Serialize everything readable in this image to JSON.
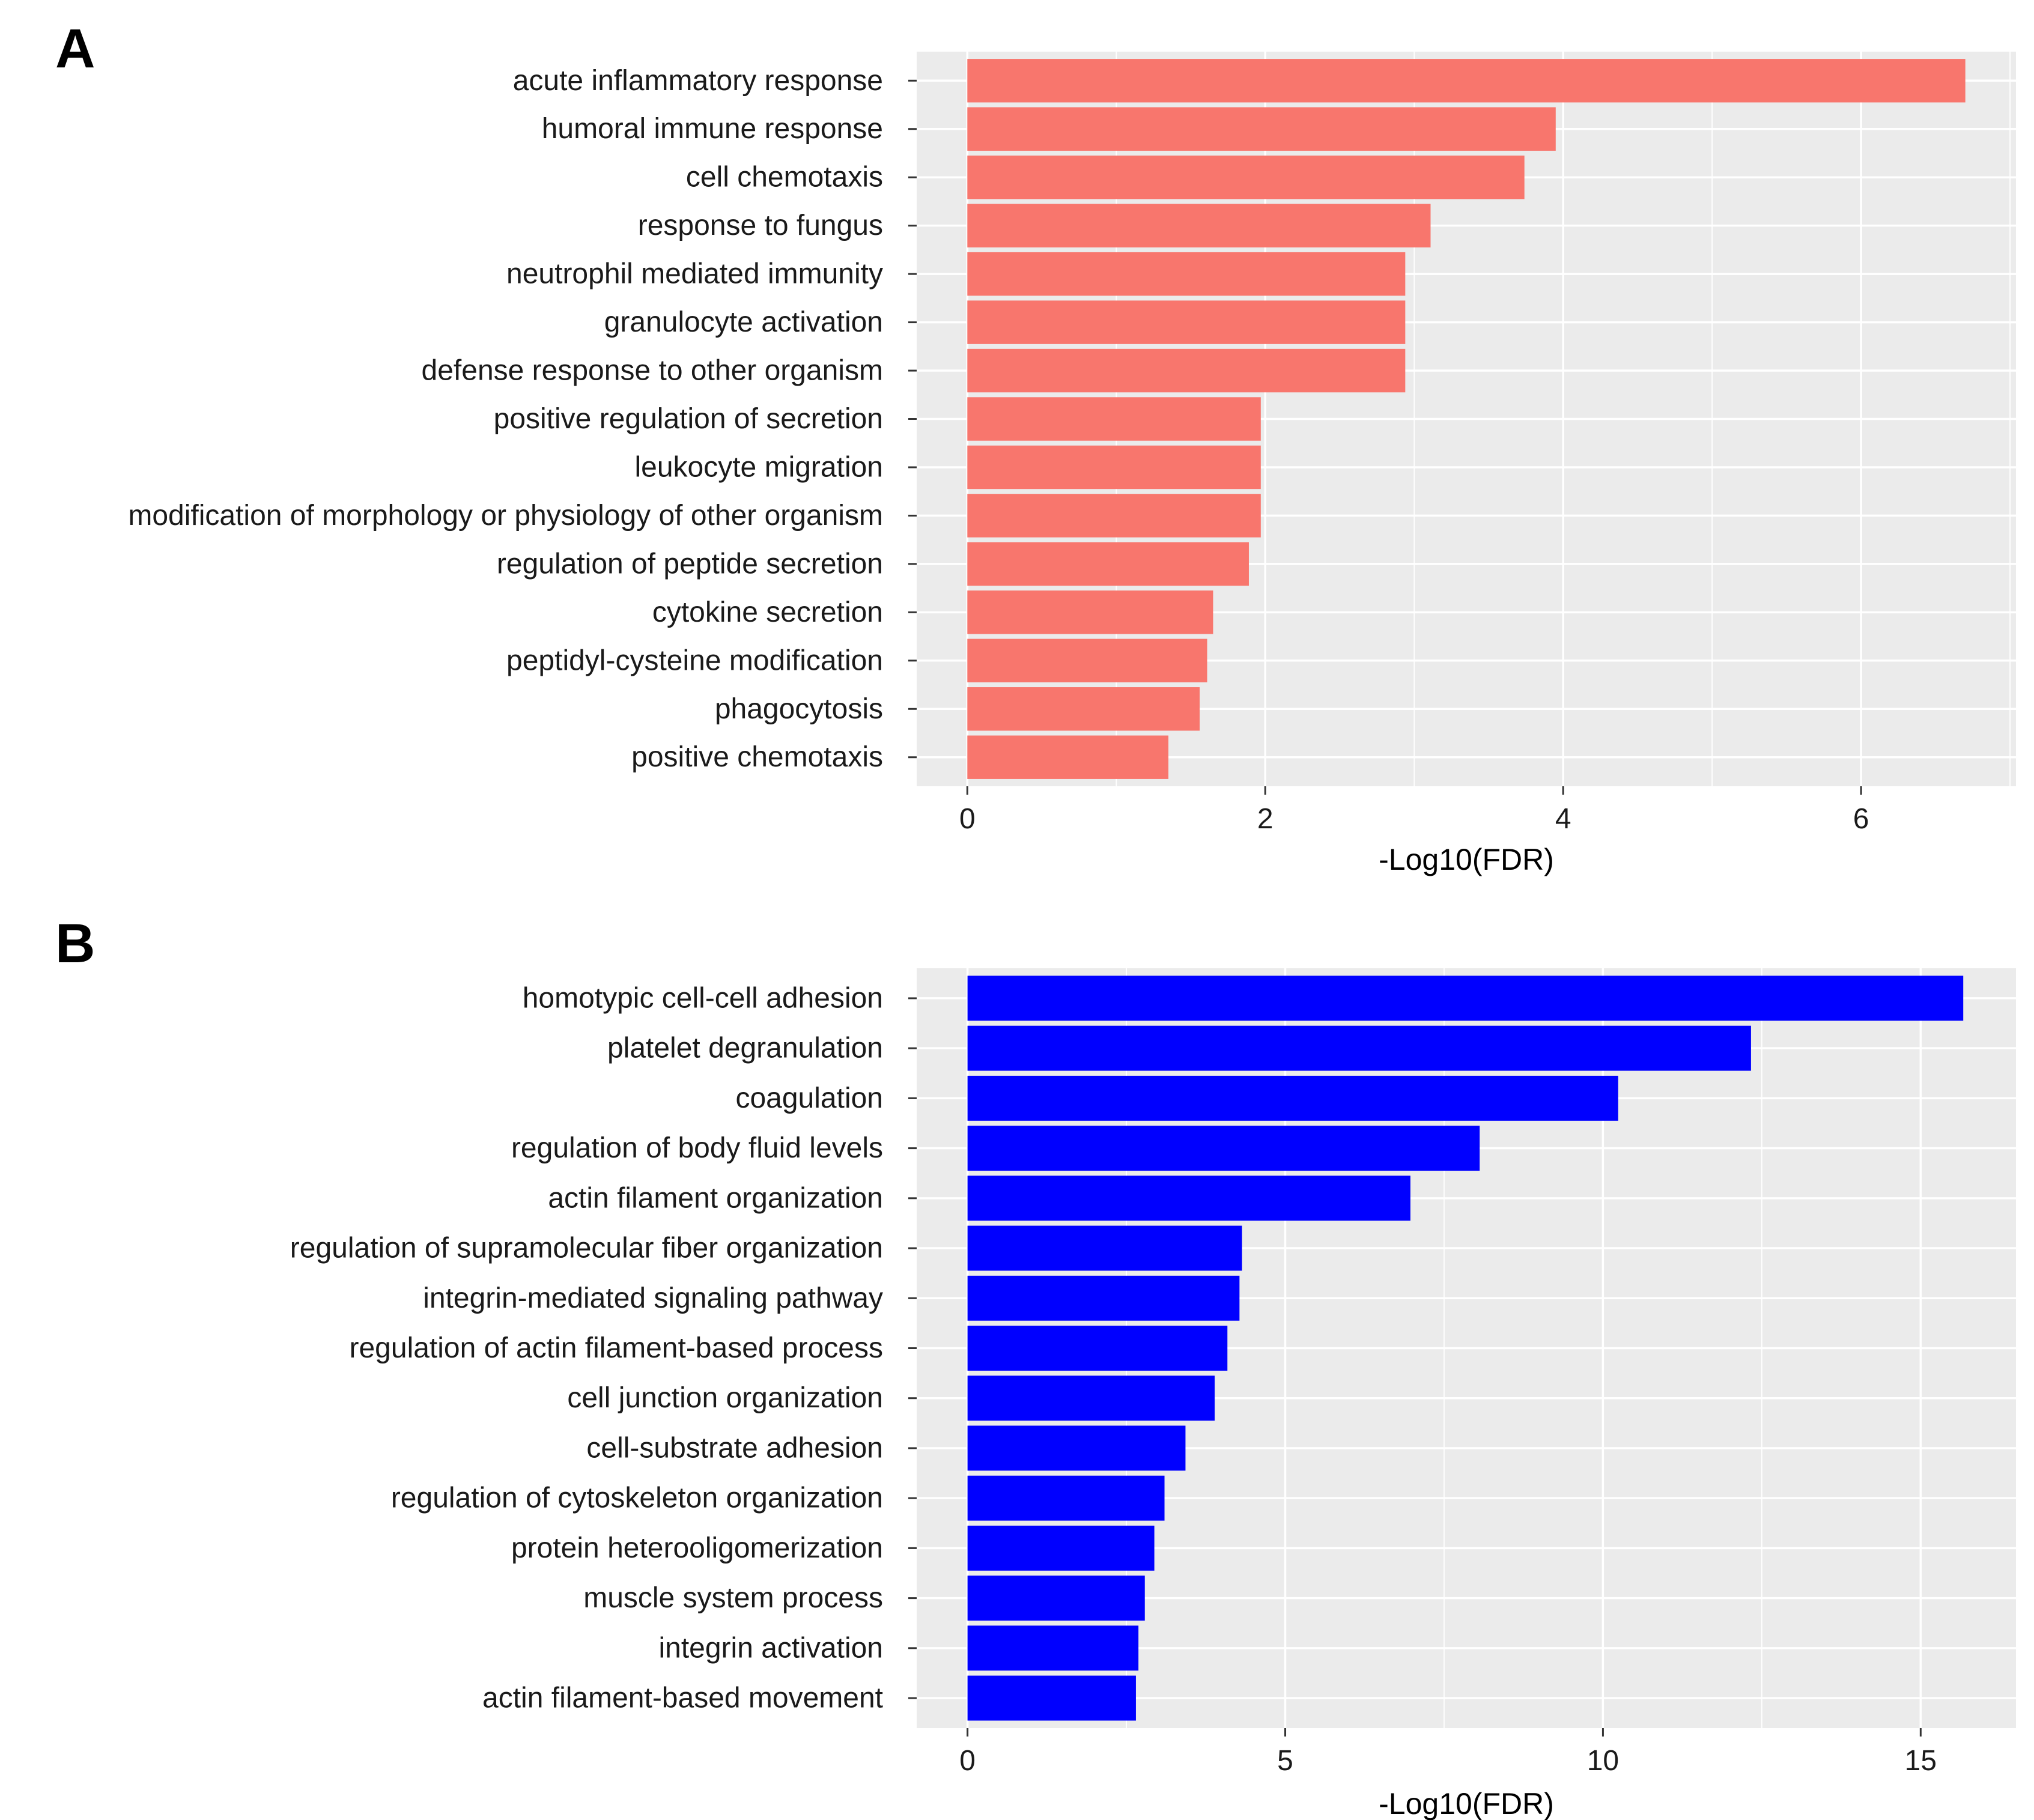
{
  "figure_label": "Two-panel horizontal bar chart of enrichment results",
  "chart_data": [
    {
      "panel": "A",
      "type": "bar",
      "orientation": "horizontal",
      "color": "#F8766D",
      "panel_background": "#EBEBEB",
      "grid_color": "#FFFFFF",
      "categories": [
        "acute inflammatory response",
        "humoral immune response",
        "cell chemotaxis",
        "response to fungus",
        "neutrophil mediated immunity",
        "granulocyte activation",
        "defense response to other organism",
        "positive regulation of secretion",
        "leukocyte migration",
        "modification of morphology or physiology of other organism",
        "regulation of peptide secretion",
        "cytokine secretion",
        "peptidyl-cysteine modification",
        "phagocytosis",
        "positive chemotaxis"
      ],
      "values": [
        6.7,
        3.95,
        3.74,
        3.11,
        2.94,
        2.94,
        2.94,
        1.97,
        1.97,
        1.97,
        1.89,
        1.65,
        1.61,
        1.56,
        1.35
      ],
      "xlabel": "-Log10(FDR)",
      "ylabel": "",
      "xlim": [
        -0.34,
        7.04
      ],
      "xticks": [
        0,
        2,
        4,
        6
      ],
      "xtick_labels": [
        "0",
        "2",
        "4",
        "6"
      ]
    },
    {
      "panel": "B",
      "type": "bar",
      "orientation": "horizontal",
      "color": "#0000FF",
      "panel_background": "#EBEBEB",
      "grid_color": "#FFFFFF",
      "categories": [
        "homotypic cell-cell adhesion",
        "platelet degranulation",
        "coagulation",
        "regulation of body fluid levels",
        "actin filament organization",
        "regulation of supramolecular fiber organization",
        "integrin-mediated signaling pathway",
        "regulation of actin filament-based process",
        "cell junction organization",
        "cell-substrate adhesion",
        "regulation of cytoskeleton organization",
        "protein heterooligomerization",
        "muscle system process",
        "integrin activation",
        "actin filament-based movement"
      ],
      "values": [
        15.67,
        12.33,
        10.24,
        8.06,
        6.97,
        4.32,
        4.28,
        4.09,
        3.89,
        3.43,
        3.1,
        2.94,
        2.79,
        2.69,
        2.65
      ],
      "xlabel": "-Log10(FDR)",
      "ylabel": "",
      "xlim": [
        -0.8,
        16.5
      ],
      "xticks": [
        0,
        5,
        10,
        15
      ],
      "xtick_labels": [
        "0",
        "5",
        "10",
        "15"
      ]
    }
  ]
}
